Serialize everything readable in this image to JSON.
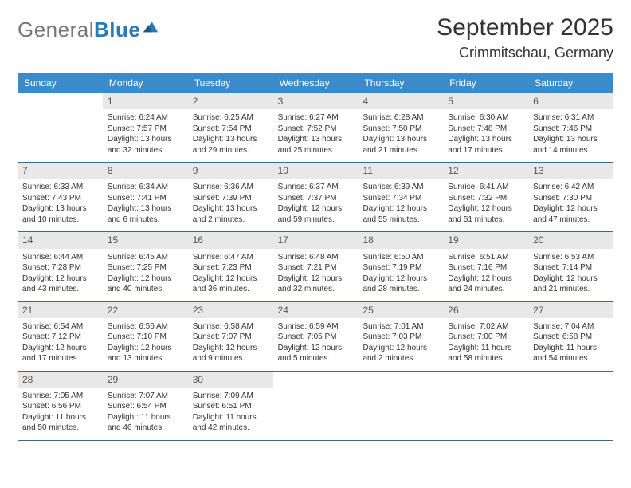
{
  "logo": {
    "text_grey": "General",
    "text_blue": "Blue"
  },
  "title": "September 2025",
  "location": "Crimmitschau, Germany",
  "colors": {
    "header_bg": "#3b8bca",
    "header_text": "#ffffff",
    "daynum_bg": "#e8e8e8",
    "daynum_text": "#555555",
    "row_border": "#3b6a8f",
    "body_text": "#333333",
    "page_bg": "#ffffff"
  },
  "day_headers": [
    "Sunday",
    "Monday",
    "Tuesday",
    "Wednesday",
    "Thursday",
    "Friday",
    "Saturday"
  ],
  "weeks": [
    [
      {
        "n": "",
        "sunrise": "",
        "sunset": "",
        "day1": "",
        "day2": ""
      },
      {
        "n": "1",
        "sunrise": "Sunrise: 6:24 AM",
        "sunset": "Sunset: 7:57 PM",
        "day1": "Daylight: 13 hours",
        "day2": "and 32 minutes."
      },
      {
        "n": "2",
        "sunrise": "Sunrise: 6:25 AM",
        "sunset": "Sunset: 7:54 PM",
        "day1": "Daylight: 13 hours",
        "day2": "and 29 minutes."
      },
      {
        "n": "3",
        "sunrise": "Sunrise: 6:27 AM",
        "sunset": "Sunset: 7:52 PM",
        "day1": "Daylight: 13 hours",
        "day2": "and 25 minutes."
      },
      {
        "n": "4",
        "sunrise": "Sunrise: 6:28 AM",
        "sunset": "Sunset: 7:50 PM",
        "day1": "Daylight: 13 hours",
        "day2": "and 21 minutes."
      },
      {
        "n": "5",
        "sunrise": "Sunrise: 6:30 AM",
        "sunset": "Sunset: 7:48 PM",
        "day1": "Daylight: 13 hours",
        "day2": "and 17 minutes."
      },
      {
        "n": "6",
        "sunrise": "Sunrise: 6:31 AM",
        "sunset": "Sunset: 7:46 PM",
        "day1": "Daylight: 13 hours",
        "day2": "and 14 minutes."
      }
    ],
    [
      {
        "n": "7",
        "sunrise": "Sunrise: 6:33 AM",
        "sunset": "Sunset: 7:43 PM",
        "day1": "Daylight: 13 hours",
        "day2": "and 10 minutes."
      },
      {
        "n": "8",
        "sunrise": "Sunrise: 6:34 AM",
        "sunset": "Sunset: 7:41 PM",
        "day1": "Daylight: 13 hours",
        "day2": "and 6 minutes."
      },
      {
        "n": "9",
        "sunrise": "Sunrise: 6:36 AM",
        "sunset": "Sunset: 7:39 PM",
        "day1": "Daylight: 13 hours",
        "day2": "and 2 minutes."
      },
      {
        "n": "10",
        "sunrise": "Sunrise: 6:37 AM",
        "sunset": "Sunset: 7:37 PM",
        "day1": "Daylight: 12 hours",
        "day2": "and 59 minutes."
      },
      {
        "n": "11",
        "sunrise": "Sunrise: 6:39 AM",
        "sunset": "Sunset: 7:34 PM",
        "day1": "Daylight: 12 hours",
        "day2": "and 55 minutes."
      },
      {
        "n": "12",
        "sunrise": "Sunrise: 6:41 AM",
        "sunset": "Sunset: 7:32 PM",
        "day1": "Daylight: 12 hours",
        "day2": "and 51 minutes."
      },
      {
        "n": "13",
        "sunrise": "Sunrise: 6:42 AM",
        "sunset": "Sunset: 7:30 PM",
        "day1": "Daylight: 12 hours",
        "day2": "and 47 minutes."
      }
    ],
    [
      {
        "n": "14",
        "sunrise": "Sunrise: 6:44 AM",
        "sunset": "Sunset: 7:28 PM",
        "day1": "Daylight: 12 hours",
        "day2": "and 43 minutes."
      },
      {
        "n": "15",
        "sunrise": "Sunrise: 6:45 AM",
        "sunset": "Sunset: 7:25 PM",
        "day1": "Daylight: 12 hours",
        "day2": "and 40 minutes."
      },
      {
        "n": "16",
        "sunrise": "Sunrise: 6:47 AM",
        "sunset": "Sunset: 7:23 PM",
        "day1": "Daylight: 12 hours",
        "day2": "and 36 minutes."
      },
      {
        "n": "17",
        "sunrise": "Sunrise: 6:48 AM",
        "sunset": "Sunset: 7:21 PM",
        "day1": "Daylight: 12 hours",
        "day2": "and 32 minutes."
      },
      {
        "n": "18",
        "sunrise": "Sunrise: 6:50 AM",
        "sunset": "Sunset: 7:19 PM",
        "day1": "Daylight: 12 hours",
        "day2": "and 28 minutes."
      },
      {
        "n": "19",
        "sunrise": "Sunrise: 6:51 AM",
        "sunset": "Sunset: 7:16 PM",
        "day1": "Daylight: 12 hours",
        "day2": "and 24 minutes."
      },
      {
        "n": "20",
        "sunrise": "Sunrise: 6:53 AM",
        "sunset": "Sunset: 7:14 PM",
        "day1": "Daylight: 12 hours",
        "day2": "and 21 minutes."
      }
    ],
    [
      {
        "n": "21",
        "sunrise": "Sunrise: 6:54 AM",
        "sunset": "Sunset: 7:12 PM",
        "day1": "Daylight: 12 hours",
        "day2": "and 17 minutes."
      },
      {
        "n": "22",
        "sunrise": "Sunrise: 6:56 AM",
        "sunset": "Sunset: 7:10 PM",
        "day1": "Daylight: 12 hours",
        "day2": "and 13 minutes."
      },
      {
        "n": "23",
        "sunrise": "Sunrise: 6:58 AM",
        "sunset": "Sunset: 7:07 PM",
        "day1": "Daylight: 12 hours",
        "day2": "and 9 minutes."
      },
      {
        "n": "24",
        "sunrise": "Sunrise: 6:59 AM",
        "sunset": "Sunset: 7:05 PM",
        "day1": "Daylight: 12 hours",
        "day2": "and 5 minutes."
      },
      {
        "n": "25",
        "sunrise": "Sunrise: 7:01 AM",
        "sunset": "Sunset: 7:03 PM",
        "day1": "Daylight: 12 hours",
        "day2": "and 2 minutes."
      },
      {
        "n": "26",
        "sunrise": "Sunrise: 7:02 AM",
        "sunset": "Sunset: 7:00 PM",
        "day1": "Daylight: 11 hours",
        "day2": "and 58 minutes."
      },
      {
        "n": "27",
        "sunrise": "Sunrise: 7:04 AM",
        "sunset": "Sunset: 6:58 PM",
        "day1": "Daylight: 11 hours",
        "day2": "and 54 minutes."
      }
    ],
    [
      {
        "n": "28",
        "sunrise": "Sunrise: 7:05 AM",
        "sunset": "Sunset: 6:56 PM",
        "day1": "Daylight: 11 hours",
        "day2": "and 50 minutes."
      },
      {
        "n": "29",
        "sunrise": "Sunrise: 7:07 AM",
        "sunset": "Sunset: 6:54 PM",
        "day1": "Daylight: 11 hours",
        "day2": "and 46 minutes."
      },
      {
        "n": "30",
        "sunrise": "Sunrise: 7:09 AM",
        "sunset": "Sunset: 6:51 PM",
        "day1": "Daylight: 11 hours",
        "day2": "and 42 minutes."
      },
      {
        "n": "",
        "sunrise": "",
        "sunset": "",
        "day1": "",
        "day2": ""
      },
      {
        "n": "",
        "sunrise": "",
        "sunset": "",
        "day1": "",
        "day2": ""
      },
      {
        "n": "",
        "sunrise": "",
        "sunset": "",
        "day1": "",
        "day2": ""
      },
      {
        "n": "",
        "sunrise": "",
        "sunset": "",
        "day1": "",
        "day2": ""
      }
    ]
  ]
}
